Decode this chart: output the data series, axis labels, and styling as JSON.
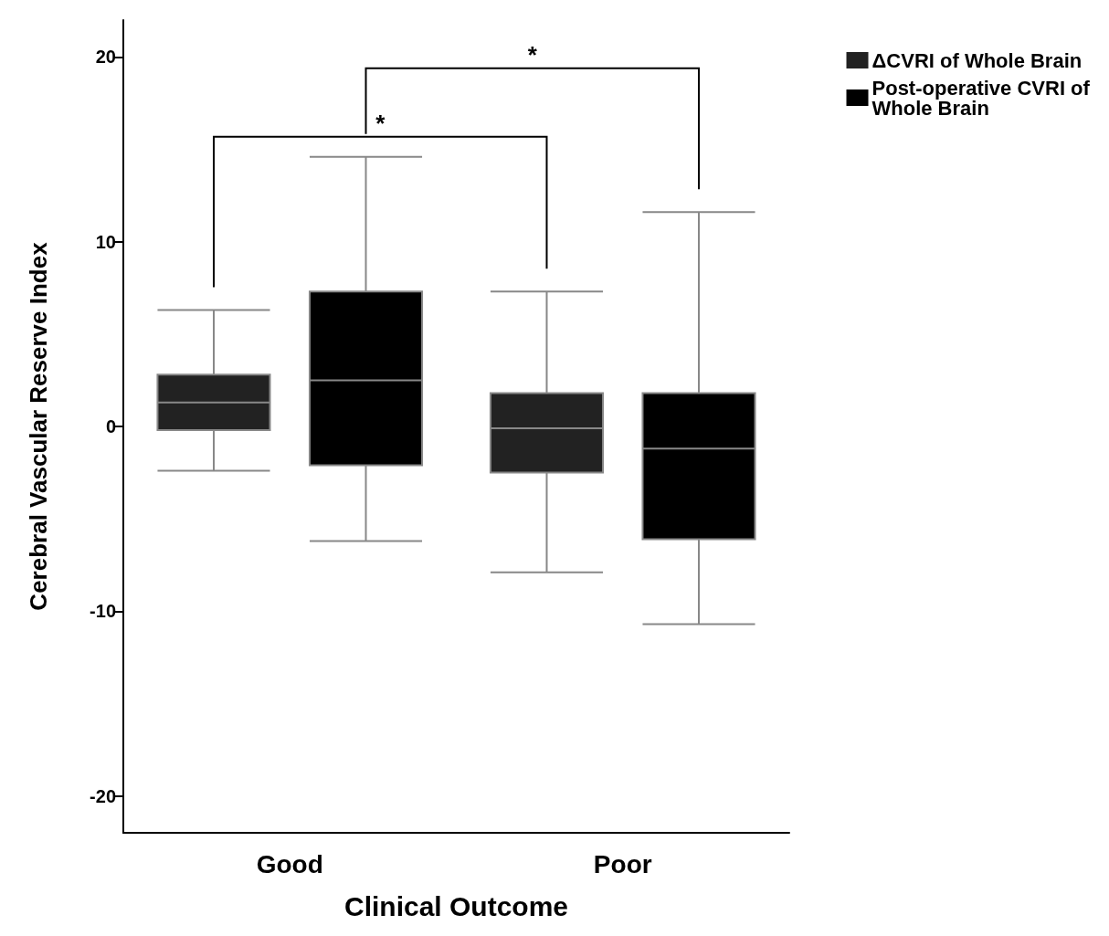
{
  "chart_data": {
    "type": "box",
    "xlabel": "Clinical Outcome",
    "ylabel": "Cerebral Vascular Reserve Index",
    "categories": [
      "Good",
      "Poor"
    ],
    "series": [
      {
        "name": "ΔCVRI of Whole Brain",
        "color": "#222222",
        "boxes": [
          {
            "low": -2.4,
            "q1": -0.2,
            "median": 1.3,
            "q3": 2.8,
            "high": 6.3
          },
          {
            "low": -7.9,
            "q1": -2.5,
            "median": -0.1,
            "q3": 1.8,
            "high": 7.3
          }
        ]
      },
      {
        "name": "Post-operative CVRI of Whole Brain",
        "color": "#000000",
        "boxes": [
          {
            "low": -6.2,
            "q1": -2.1,
            "median": 2.5,
            "q3": 7.3,
            "high": 14.6
          },
          {
            "low": -10.7,
            "q1": -6.1,
            "median": -1.2,
            "q3": 1.8,
            "high": 11.6
          }
        ]
      }
    ],
    "ylim": [
      -22,
      22
    ],
    "yticks": [
      -20,
      -10,
      0,
      10,
      20
    ],
    "grid": false,
    "legend": "top right",
    "annotations": [
      "*",
      "*"
    ]
  }
}
